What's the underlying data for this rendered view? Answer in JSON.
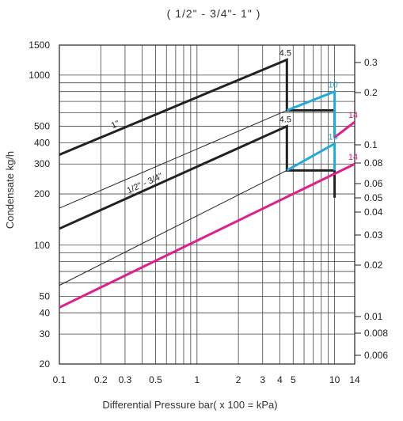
{
  "chart_data": {
    "type": "line",
    "title": "( 1/2\" -  3/4\"- 1\" )",
    "xlabel": "Differential Pressure  bar( x 100 = kPa)",
    "ylabel": "Condensate kg/h",
    "x_scale": "log",
    "y_scale": "log",
    "xlim": [
      0.1,
      14
    ],
    "ylim": [
      20,
      1500
    ],
    "grid": true,
    "x_ticks": [
      "0.1",
      "0.2",
      "0.3",
      "0.5",
      "1",
      "2",
      "3",
      "4",
      "5",
      "10",
      "14"
    ],
    "y_ticks": [
      "20",
      "30",
      "40",
      "50",
      "100",
      "200",
      "300",
      "400",
      "500",
      "1000",
      "1500"
    ],
    "right_ticks": [
      "0.3",
      "0.2",
      "0.1",
      "0.08",
      "0.06",
      "0.05",
      "0.04",
      "0.03",
      "0.02",
      "0.01",
      "0.008",
      "0.006"
    ],
    "series": [
      {
        "name": "1\"",
        "color": "#222222",
        "x": [
          0.1,
          4.5,
          4.5,
          10,
          10
        ],
        "y": [
          340,
          1230,
          620,
          620,
          430
        ]
      },
      {
        "name": "1/2\" - 3/4\"",
        "color": "#222222",
        "x": [
          0.1,
          4.5,
          4.5,
          10,
          10
        ],
        "y": [
          125,
          500,
          275,
          275,
          190
        ]
      },
      {
        "color": "#22aadd",
        "x": [
          4.5,
          10,
          10
        ],
        "y": [
          620,
          800,
          430
        ]
      },
      {
        "color": "#22aadd",
        "x": [
          4.5,
          10,
          10
        ],
        "y": [
          275,
          395,
          275
        ]
      },
      {
        "color": "#e0208a",
        "x": [
          10,
          14
        ],
        "y": [
          430,
          530
        ]
      },
      {
        "color": "#e0208a",
        "x": [
          0.1,
          14
        ],
        "y": [
          43,
          300
        ]
      }
    ],
    "thin_lines": [
      {
        "x": [
          0.1,
          4.5
        ],
        "y": [
          165,
          620
        ]
      },
      {
        "x": [
          0.1,
          4.5
        ],
        "y": [
          58,
          275
        ]
      }
    ],
    "annotations": [
      {
        "text": "4.5",
        "x": 4.5,
        "y": 1230,
        "color": "#222222"
      },
      {
        "text": "4.5",
        "x": 4.5,
        "y": 500,
        "color": "#222222"
      },
      {
        "text": "10",
        "x": 10,
        "y": 800,
        "color": "#22aadd"
      },
      {
        "text": "10",
        "x": 10,
        "y": 395,
        "color": "#22aadd"
      },
      {
        "text": "14",
        "x": 14,
        "y": 530,
        "color": "#e0208a"
      },
      {
        "text": "14",
        "x": 14,
        "y": 300,
        "color": "#e0208a"
      }
    ],
    "line_labels": [
      {
        "text": "1\"",
        "series": 0
      },
      {
        "text": "1/2\" - 3/4\"",
        "series": 1
      }
    ]
  }
}
